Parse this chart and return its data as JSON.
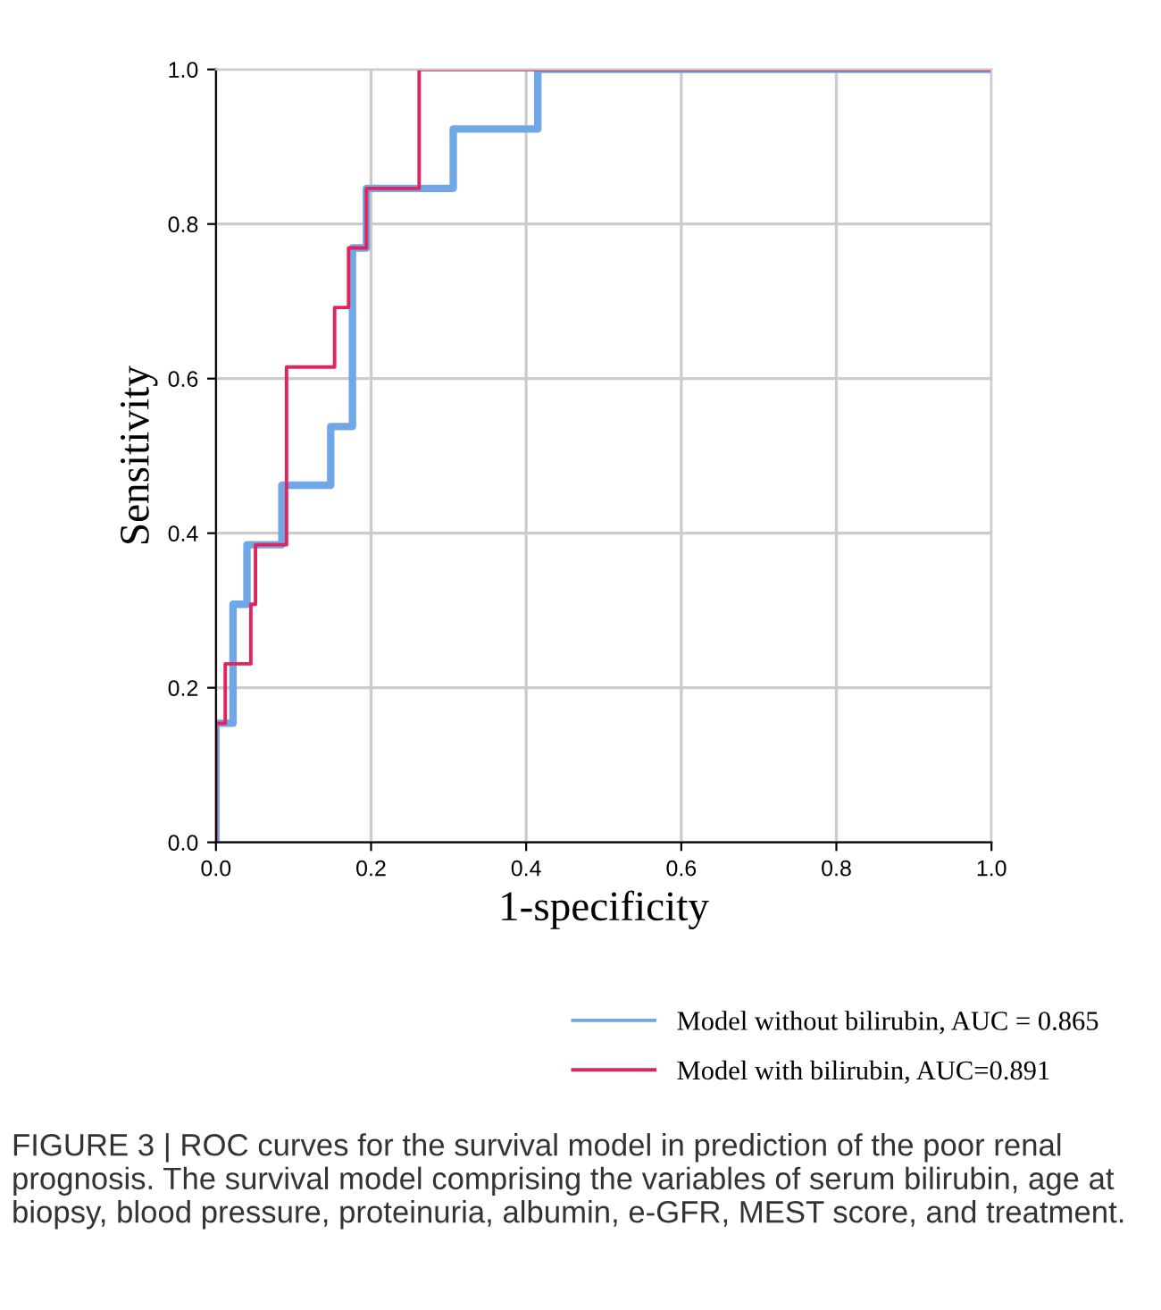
{
  "chart_data": {
    "type": "step",
    "xlabel": "1-specificity",
    "ylabel": "Sensitivity",
    "xlim": [
      0,
      1
    ],
    "ylim": [
      0,
      1
    ],
    "xticks": [
      {
        "value": 0,
        "label": "0.0"
      },
      {
        "value": 0.2,
        "label": "0.2"
      },
      {
        "value": 0.4,
        "label": "0.4"
      },
      {
        "value": 0.6,
        "label": "0.6"
      },
      {
        "value": 0.8,
        "label": "0.8"
      },
      {
        "value": 1,
        "label": "1.0"
      }
    ],
    "yticks": [
      {
        "value": 0,
        "label": "0.0"
      },
      {
        "value": 0.2,
        "label": "0.2"
      },
      {
        "value": 0.4,
        "label": "0.4"
      },
      {
        "value": 0.6,
        "label": "0.6"
      },
      {
        "value": 0.8,
        "label": "0.8"
      },
      {
        "value": 1,
        "label": "1.0"
      }
    ],
    "grid": true,
    "legend": "bottom",
    "series": [
      {
        "name": "Model without bilirubin, AUC = 0.865",
        "color": "#70a7e6",
        "x": [
          0,
          0,
          0.022,
          0.04,
          0.085,
          0.148,
          0.176,
          0.194,
          0.306,
          0.415,
          1.0
        ],
        "values": [
          0,
          0.154,
          0.308,
          0.385,
          0.462,
          0.538,
          0.769,
          0.846,
          0.923,
          1.0,
          1.0
        ]
      },
      {
        "name": "Model with bilirubin, AUC=0.891",
        "color": "#e0245e",
        "x": [
          0,
          0,
          0.012,
          0.045,
          0.051,
          0.091,
          0.153,
          0.171,
          0.194,
          0.262,
          1.0
        ],
        "values": [
          0,
          0.154,
          0.231,
          0.308,
          0.385,
          0.615,
          0.692,
          0.769,
          0.846,
          1.0,
          1.0
        ]
      }
    ],
    "annotations": [
      "FIGURE 3 | ROC curves for the survival model in prediction of the poor renal prognosis. The survival model comprising the variables of serum bilirubin, age at biopsy, blood pressure, proteinuria, albumin, e-GFR, MEST score, and treatment."
    ]
  }
}
